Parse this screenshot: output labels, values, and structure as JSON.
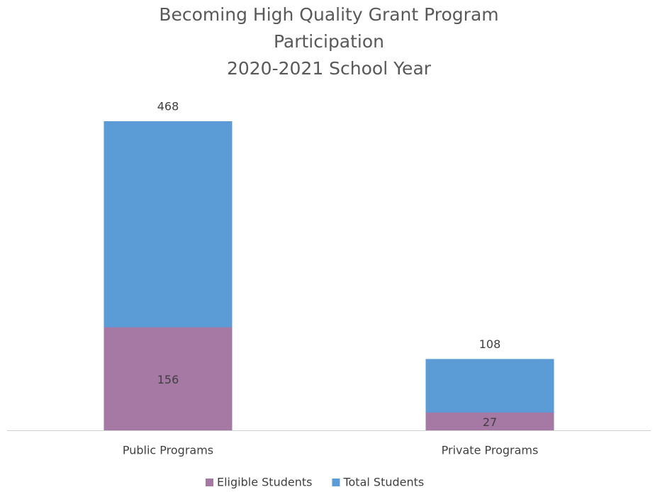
{
  "chart_data": {
    "type": "bar",
    "title": [
      "Becoming High Quality Grant Program",
      "Participation",
      "2020-2021 School Year"
    ],
    "categories": [
      "Public Programs",
      "Private Programs"
    ],
    "series": [
      {
        "name": "Eligible Students",
        "color": "#a679a4",
        "values": [
          156,
          27
        ]
      },
      {
        "name": "Total Students",
        "color": "#5b9bd6",
        "values": [
          468,
          108
        ]
      }
    ],
    "overlap": true,
    "grid": false,
    "legend": "bottom"
  }
}
